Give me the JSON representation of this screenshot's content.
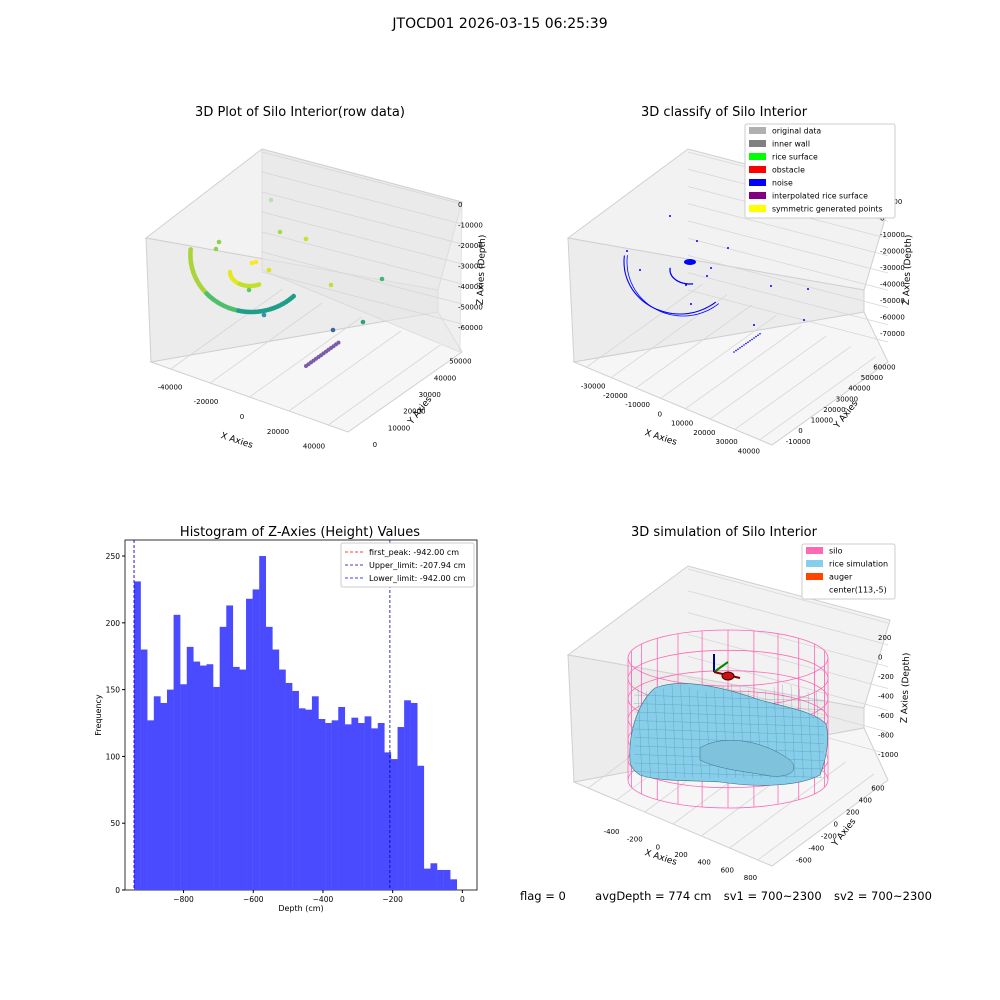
{
  "suptitle": "JTOCD01 2026-03-15 06:25:39",
  "status": {
    "flag": "flag = 0",
    "avg_depth": "avgDepth = 774 cm",
    "sv1": "sv1 = 700~2300",
    "sv2": "sv2 = 700~2300"
  },
  "chart_data": [
    {
      "type": "scatter",
      "projection": "3d",
      "title": "3D Plot of Silo Interior(row data)",
      "xlabel": "X Axies",
      "ylabel": "Y Axies",
      "zlabel": "Z Axies (Depth)",
      "xticks": [
        "-40000",
        "-20000",
        "0",
        "20000",
        "40000"
      ],
      "yticks": [
        "0",
        "10000",
        "20000",
        "30000",
        "40000",
        "50000"
      ],
      "zticks": [
        "0",
        "-10000",
        "-20000",
        "-30000",
        "-40000",
        "-50000",
        "-60000"
      ],
      "colormap": "viridis",
      "grid": true
    },
    {
      "type": "scatter",
      "projection": "3d",
      "title": "3D classify of Silo Interior",
      "xlabel": "X Axies",
      "ylabel": "Y Axies",
      "zlabel": "Z Axies (Depth)",
      "xticks": [
        "-30000",
        "-20000",
        "-10000",
        "0",
        "10000",
        "20000",
        "30000",
        "40000"
      ],
      "yticks": [
        "-10000",
        "0",
        "10000",
        "20000",
        "30000",
        "40000",
        "50000",
        "60000"
      ],
      "zticks": [
        "10000",
        "0",
        "-10000",
        "-20000",
        "-30000",
        "-40000",
        "-50000",
        "-60000",
        "-70000"
      ],
      "legend_position": "top-right",
      "legend": [
        {
          "label": "original data",
          "color": "#b0b0b0"
        },
        {
          "label": "inner wall",
          "color": "#808080"
        },
        {
          "label": "rice surface",
          "color": "#00ff00"
        },
        {
          "label": "obstacle",
          "color": "#ff0000"
        },
        {
          "label": "noise",
          "color": "#0000ff"
        },
        {
          "label": "interpolated rice surface",
          "color": "#800080"
        },
        {
          "label": "symmetric generated points",
          "color": "#ffff00"
        }
      ],
      "grid": true
    },
    {
      "type": "bar",
      "title": "Histogram of Z-Axies (Height) Values",
      "xlabel": "Depth (cm)",
      "ylabel": "Frequency",
      "xlim": [
        -968,
        42
      ],
      "ylim": [
        0,
        262
      ],
      "xticks": [
        -800,
        -600,
        -400,
        -200,
        0
      ],
      "yticks": [
        0,
        50,
        100,
        150,
        200,
        250
      ],
      "bar_color": "#4a4aff",
      "bin_edges_start": -942,
      "bin_width": 18.9,
      "values": [
        231,
        180,
        127,
        145,
        140,
        150,
        206,
        154,
        182,
        171,
        168,
        169,
        152,
        197,
        213,
        167,
        165,
        218,
        225,
        250,
        197,
        180,
        165,
        155,
        149,
        136,
        135,
        145,
        128,
        125,
        127,
        137,
        124,
        129,
        125,
        130,
        121,
        125,
        103,
        98,
        122,
        142,
        140,
        93,
        16,
        20,
        15,
        15,
        8
      ],
      "lines": [
        {
          "label": "first_peak: -942.00 cm",
          "x": -942.0,
          "color": "#ff0000"
        },
        {
          "label": "Upper_limit: -207.94 cm",
          "x": -207.94,
          "color": "#0000aa"
        },
        {
          "label": "Lower_limit: -942.00 cm",
          "x": -942.0,
          "color": "#0000ff"
        }
      ],
      "legend_position": "top-right"
    },
    {
      "type": "other",
      "projection": "3d",
      "title": "3D simulation of Silo Interior",
      "xlabel": "X Axies",
      "ylabel": "Y Axies",
      "zlabel": "Z Axies (Depth)",
      "xticks": [
        "-400",
        "-200",
        "0",
        "200",
        "400",
        "600",
        "800"
      ],
      "yticks": [
        "-600",
        "-400",
        "-200",
        "0",
        "200",
        "400",
        "600"
      ],
      "zticks": [
        "200",
        "0",
        "-200",
        "-400",
        "-600",
        "-800",
        "-1000"
      ],
      "legend_position": "top-right",
      "legend": [
        {
          "label": "silo",
          "color": "#ff69b4"
        },
        {
          "label": "rice simulation",
          "color": "#87ceeb"
        },
        {
          "label": "auger",
          "color": "#ff4500"
        },
        {
          "label": "center(113,-5)",
          "color": "none"
        }
      ],
      "grid": true
    }
  ]
}
